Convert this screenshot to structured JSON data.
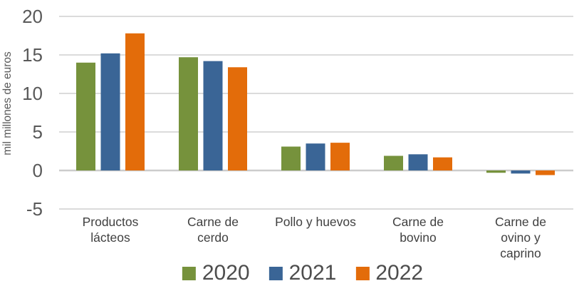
{
  "chart_data": {
    "type": "bar",
    "title": "",
    "ylabel": "mil millones de euros",
    "categories": [
      "Productos\nlácteos",
      "Carne de\ncerdo",
      "Pollo y huevos",
      "Carne de\nbovino",
      "Carne de\novino y\ncaprino"
    ],
    "series": [
      {
        "name": "2020",
        "color": "#76923C",
        "values": [
          14.0,
          14.7,
          3.1,
          1.9,
          -0.3
        ]
      },
      {
        "name": "2021",
        "color": "#3A6596",
        "values": [
          15.2,
          14.2,
          3.5,
          2.1,
          -0.4
        ]
      },
      {
        "name": "2022",
        "color": "#E36C0A",
        "values": [
          17.8,
          13.4,
          3.6,
          1.7,
          -0.6
        ]
      }
    ],
    "ylim": [
      -5,
      20
    ],
    "yticks": [
      20,
      15,
      10,
      5,
      0,
      -5
    ],
    "grid": true,
    "legend_position": "bottom"
  },
  "colors": {
    "gridline": "#DBDBDB",
    "zero_line": "#CCCCCC",
    "tick_text": "#595959",
    "category_text": "#404040",
    "legend_text": "#4D4D4D"
  }
}
